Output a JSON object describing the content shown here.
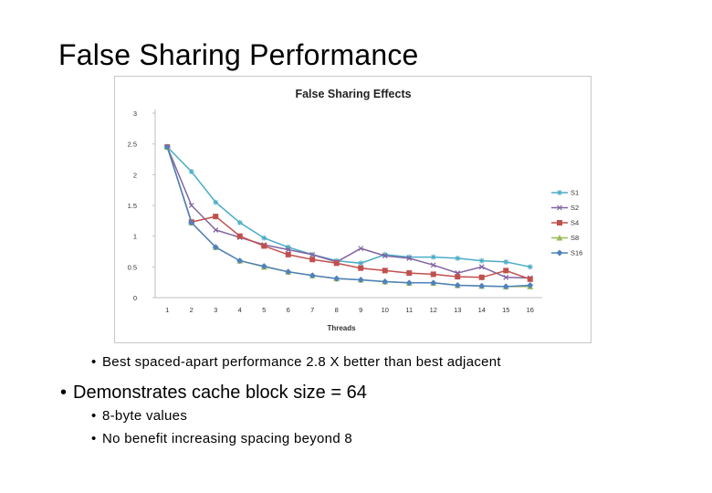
{
  "slide": {
    "title": "False Sharing Performance",
    "bullets": [
      {
        "text": "Best spaced-apart performance 2.8 X better than best adjacent",
        "level": 2
      },
      {
        "text": "Demonstrates cache block size = 64",
        "level": 1
      },
      {
        "text": "8-byte values",
        "level": 2
      },
      {
        "text": "No benefit increasing spacing beyond 8",
        "level": 2
      }
    ],
    "bullet_glyph": "•"
  },
  "chart_data": {
    "type": "line",
    "title": "False Sharing Effects",
    "xlabel": "Threads",
    "ylabel": "",
    "x": [
      1,
      2,
      3,
      4,
      5,
      6,
      7,
      8,
      9,
      10,
      11,
      12,
      13,
      14,
      15,
      16
    ],
    "ylim": [
      0,
      3
    ],
    "yticks": [
      "0",
      "0.5",
      "1",
      "1.5",
      "2",
      "2.5",
      "3"
    ],
    "grid": false,
    "legend_position": "right",
    "series": [
      {
        "name": "S1",
        "color": "#4bacc6",
        "marker": "star",
        "values": [
          2.45,
          2.05,
          1.55,
          1.22,
          0.97,
          0.82,
          0.7,
          0.6,
          0.56,
          0.7,
          0.66,
          0.66,
          0.64,
          0.6,
          0.58,
          0.5
        ]
      },
      {
        "name": "S2",
        "color": "#8064a2",
        "marker": "x",
        "values": [
          2.45,
          1.5,
          1.1,
          0.98,
          0.86,
          0.78,
          0.7,
          0.58,
          0.8,
          0.68,
          0.64,
          0.53,
          0.4,
          0.5,
          0.33,
          0.32
        ]
      },
      {
        "name": "S4",
        "color": "#c0504d",
        "marker": "square",
        "values": [
          2.45,
          1.23,
          1.32,
          1.0,
          0.84,
          0.7,
          0.62,
          0.56,
          0.48,
          0.44,
          0.4,
          0.38,
          0.34,
          0.33,
          0.44,
          0.3
        ]
      },
      {
        "name": "S8",
        "color": "#9bbb59",
        "marker": "triangle",
        "values": [
          2.45,
          1.22,
          0.82,
          0.6,
          0.5,
          0.42,
          0.36,
          0.31,
          0.29,
          0.26,
          0.24,
          0.24,
          0.2,
          0.19,
          0.18,
          0.18
        ]
      },
      {
        "name": "S16",
        "color": "#4f81bd",
        "marker": "diamond",
        "values": [
          2.45,
          1.22,
          0.82,
          0.6,
          0.51,
          0.42,
          0.36,
          0.31,
          0.29,
          0.26,
          0.24,
          0.24,
          0.2,
          0.19,
          0.18,
          0.2
        ]
      }
    ]
  }
}
